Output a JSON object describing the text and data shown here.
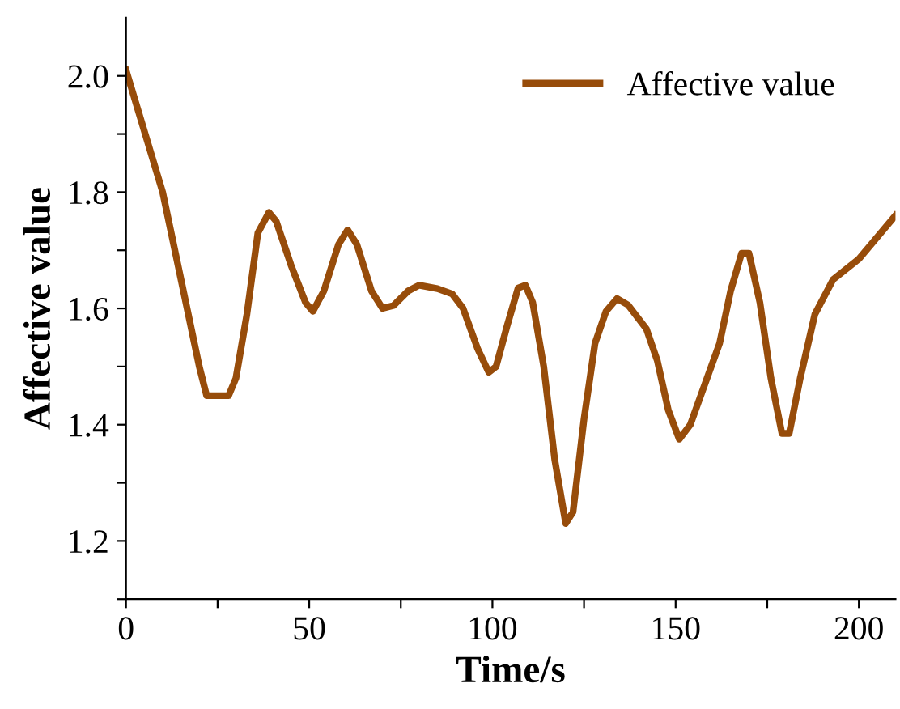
{
  "chart_data": {
    "type": "line",
    "xlabel": "Time/s",
    "ylabel": "Affective value",
    "xlim": [
      0,
      210
    ],
    "ylim": [
      1.1,
      2.1
    ],
    "xticks": [
      0,
      {
        "value": 25,
        "label": null
      },
      50,
      {
        "value": 75,
        "label": null
      },
      100,
      {
        "value": 125,
        "label": null
      },
      150,
      {
        "value": 175,
        "label": null
      },
      200
    ],
    "yticks": [
      {
        "value": 1.1,
        "label": null
      },
      1.2,
      {
        "value": 1.3,
        "label": null
      },
      1.4,
      {
        "value": 1.5,
        "label": null
      },
      1.6,
      {
        "value": 1.7,
        "label": null
      },
      1.8,
      {
        "value": 1.9,
        "label": null
      },
      {
        "value": 2.0,
        "label": "2.0"
      }
    ],
    "grid": false,
    "legend": "top right",
    "marker": "none",
    "line_style": "solid",
    "x": [
      0,
      10,
      15,
      20,
      22,
      25,
      28,
      30,
      33,
      36,
      39,
      41,
      45,
      49,
      51,
      54,
      58,
      60.5,
      63,
      67,
      70,
      73,
      77,
      80,
      85,
      89,
      92,
      96,
      99,
      101,
      104,
      107,
      109,
      111,
      114,
      117,
      120,
      122,
      125,
      128,
      131,
      134,
      137,
      142,
      145,
      148,
      151,
      154,
      158,
      162,
      165,
      168,
      170,
      173,
      176,
      179,
      181,
      184,
      188,
      193,
      200,
      210
    ],
    "series": [
      {
        "name": "Affective value",
        "color": "#974c0a",
        "values": [
          2.01,
          1.8,
          1.65,
          1.5,
          1.45,
          1.45,
          1.45,
          1.48,
          1.59,
          1.73,
          1.765,
          1.75,
          1.675,
          1.61,
          1.595,
          1.63,
          1.71,
          1.735,
          1.71,
          1.63,
          1.6,
          1.605,
          1.63,
          1.64,
          1.634,
          1.625,
          1.6,
          1.53,
          1.49,
          1.5,
          1.57,
          1.635,
          1.64,
          1.61,
          1.5,
          1.34,
          1.23,
          1.25,
          1.41,
          1.54,
          1.595,
          1.617,
          1.606,
          1.565,
          1.51,
          1.425,
          1.375,
          1.4,
          1.47,
          1.54,
          1.63,
          1.695,
          1.695,
          1.61,
          1.48,
          1.385,
          1.385,
          1.48,
          1.59,
          1.65,
          1.685,
          1.76
        ]
      }
    ]
  }
}
